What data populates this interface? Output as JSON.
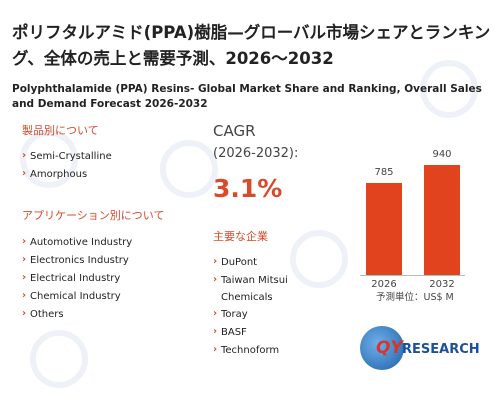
{
  "header": {
    "title": "ポリフタルアミド(PPA)樹脂—グローバル市場シェアとランキング、全体の売上と需要予測、2026～2032",
    "subtitle": "Polyphthalamide (PPA) Resins- Global Market Share and Ranking, Overall Sales and Demand Forecast 2026-2032"
  },
  "product_section": {
    "heading": "製品別について",
    "items": [
      "Semi-Crystalline",
      "Amorphous"
    ]
  },
  "application_section": {
    "heading": "アプリケーション別について",
    "items": [
      "Automotive Industry",
      "Electronics Industry",
      "Electrical Industry",
      "Chemical Industry",
      "Others"
    ]
  },
  "cagr": {
    "label": "CAGR",
    "period": "(2026-2032):",
    "value": "3.1%"
  },
  "companies": {
    "heading": "主要な企業",
    "items": [
      "DuPont",
      "Taiwan Mitsui Chemicals",
      "Toray",
      "BASF",
      "Technoform"
    ]
  },
  "chart_data": {
    "type": "bar",
    "categories": [
      "2026",
      "2032"
    ],
    "values": [
      785,
      940
    ],
    "color": "#e1431e",
    "unit_note": "予測単位：US$ M"
  },
  "logo": {
    "text_a": "QY",
    "text_b": "RESEARCH"
  }
}
